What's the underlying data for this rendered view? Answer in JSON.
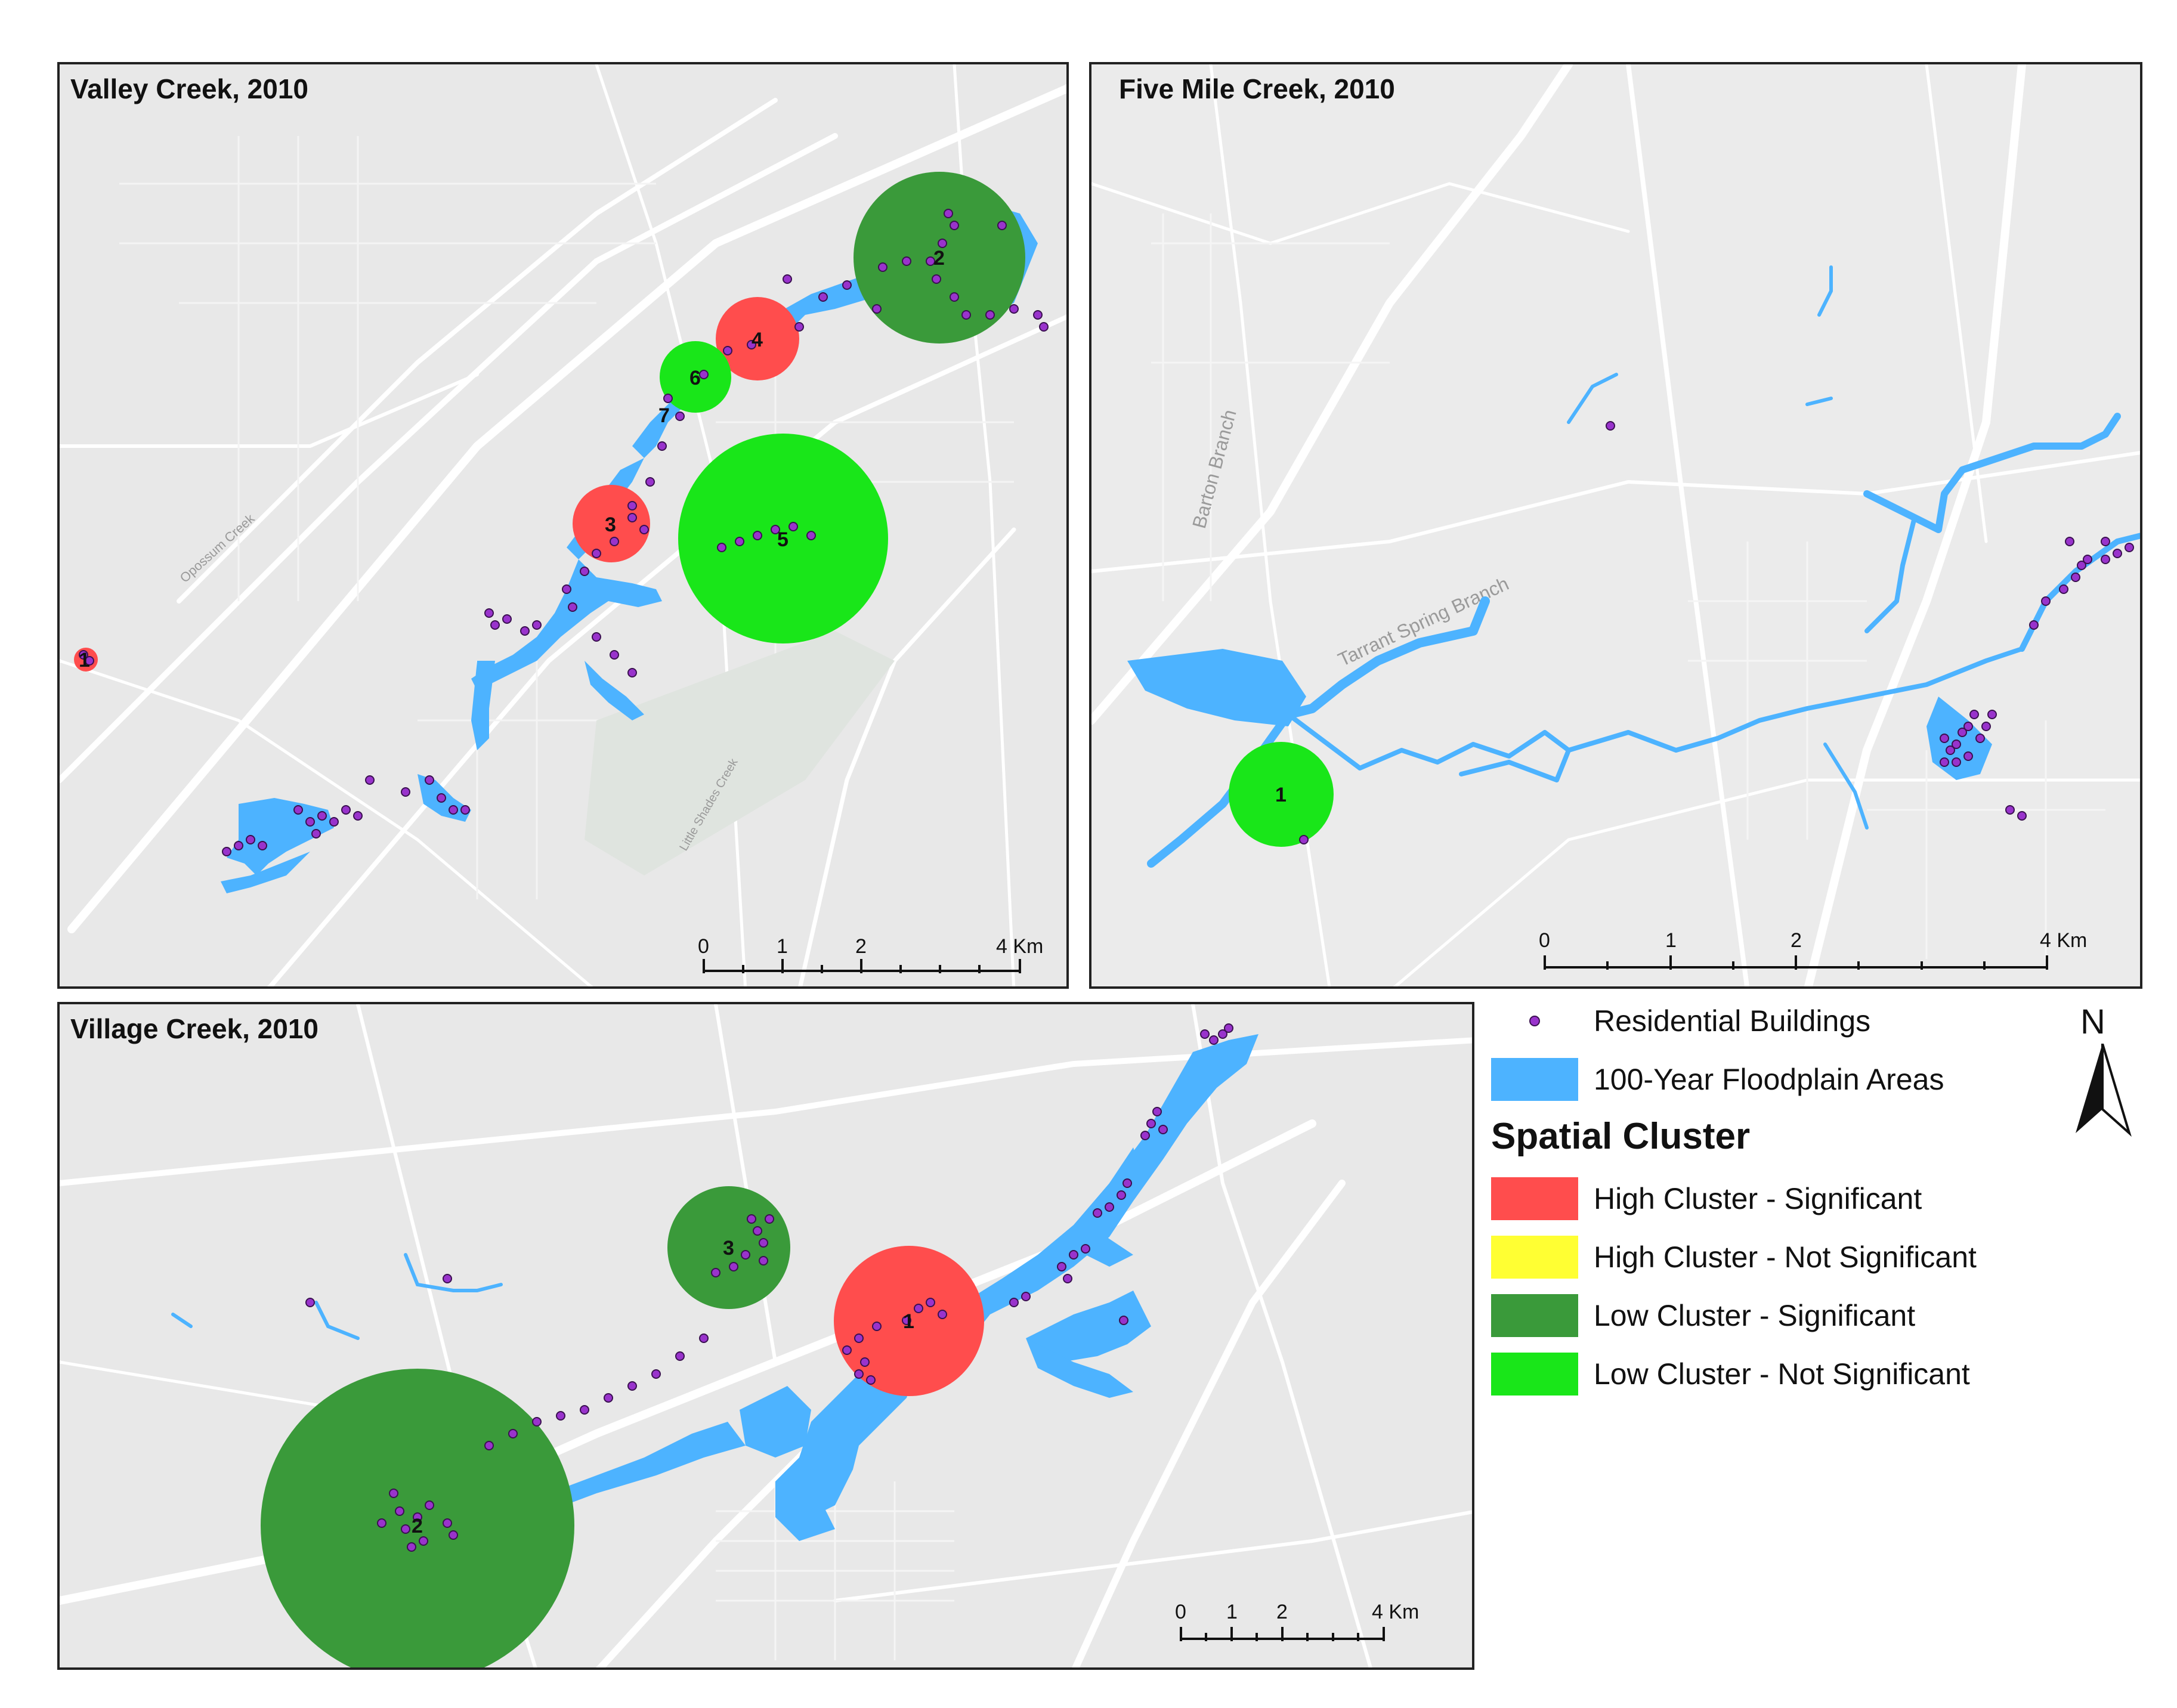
{
  "panels": {
    "valley": {
      "title": "Valley Creek, 2010",
      "scale_labels": [
        "0",
        "1",
        "2",
        "4 Km"
      ],
      "clusters": [
        {
          "id": "1",
          "type": "high_sig"
        },
        {
          "id": "2",
          "type": "low_sig"
        },
        {
          "id": "3",
          "type": "high_sig"
        },
        {
          "id": "4",
          "type": "high_sig"
        },
        {
          "id": "5",
          "type": "low_not_sig"
        },
        {
          "id": "6",
          "type": "low_not_sig"
        },
        {
          "id": "7",
          "type": "high_not_sig"
        }
      ],
      "street_labels": [
        "Opossum Creek",
        "Little Shades Creek"
      ]
    },
    "fivemile": {
      "title": "Five Mile Creek, 2010",
      "scale_labels": [
        "0",
        "1",
        "2",
        "4 Km"
      ],
      "clusters": [
        {
          "id": "1",
          "type": "low_not_sig"
        }
      ],
      "street_labels": [
        "Barton Branch",
        "Tarrant Spring Branch"
      ]
    },
    "village": {
      "title": "Village Creek, 2010",
      "scale_labels": [
        "0",
        "1",
        "2",
        "4 Km"
      ],
      "clusters": [
        {
          "id": "1",
          "type": "high_sig"
        },
        {
          "id": "2",
          "type": "low_sig"
        },
        {
          "id": "3",
          "type": "low_sig"
        }
      ]
    }
  },
  "legend": {
    "residential": "Residential Buildings",
    "floodplain": "100-Year Floodplain Areas",
    "title": "Spatial Cluster",
    "items": [
      {
        "label": "High Cluster - Significant",
        "color": "#ff4d4d"
      },
      {
        "label": "High Cluster - Not Significant",
        "color": "#ffff33"
      },
      {
        "label": "Low Cluster - Significant",
        "color": "#3a9a3a"
      },
      {
        "label": "Low Cluster - Not Significant",
        "color": "#19e619"
      }
    ]
  },
  "north_arrow": "N",
  "colors": {
    "floodplain": "#4db3ff",
    "building": "#9933cc",
    "high_sig": "#ff4d4d",
    "high_not_sig": "#ffff33",
    "low_sig": "#3a9a3a",
    "low_not_sig": "#19e619",
    "background": "#e6e6e6",
    "road": "#ffffff"
  }
}
